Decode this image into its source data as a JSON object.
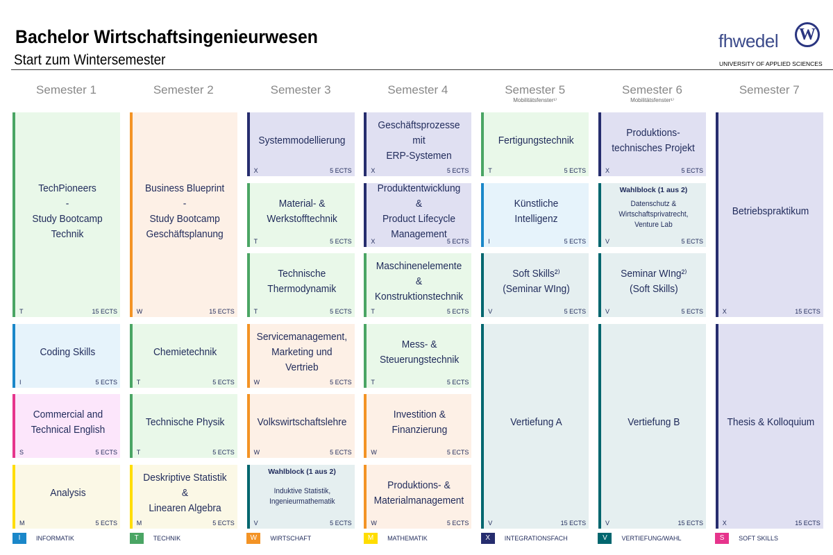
{
  "header": {
    "title": "Bachelor Wirtschaftsingenieurwesen",
    "subtitle": "Start zum Wintersemester"
  },
  "logo": {
    "text": "fhwedel",
    "emblem": "W",
    "tagline": "UNIVERSITY OF APPLIED SCIENCES"
  },
  "semesters": [
    {
      "label": "Semester 1"
    },
    {
      "label": "Semester 2"
    },
    {
      "label": "Semester 3"
    },
    {
      "label": "Semester 4"
    },
    {
      "label": "Semester 5",
      "note": "Mobilitätsfenster¹⁾"
    },
    {
      "label": "Semester 6",
      "note": "Mobilitätsfenster¹⁾"
    },
    {
      "label": "Semester 7"
    }
  ],
  "categories": {
    "I": {
      "label": "INFORMATIK",
      "color": "#1a87c9",
      "bg": "#e6f3fb"
    },
    "T": {
      "label": "TECHNIK",
      "color": "#4aa564",
      "bg": "#e9f8e9"
    },
    "W": {
      "label": "WIRTSCHAFT",
      "color": "#f39325",
      "bg": "#fdf0e6"
    },
    "M": {
      "label": "MATHEMATIK",
      "color": "#ffdd00",
      "bg": "#fbf8e6"
    },
    "X": {
      "label": "INTEGRATIONSFACH",
      "color": "#262d6e",
      "bg": "#e0e0f2"
    },
    "V": {
      "label": "VERTIEFUNG/WAHL",
      "color": "#00666e",
      "bg": "#e5eff0"
    },
    "S": {
      "label": "SOFT SKILLS",
      "color": "#e6348c",
      "bg": "#fce6fb"
    }
  },
  "legend_order": [
    "I",
    "T",
    "W",
    "M",
    "X",
    "V",
    "S"
  ],
  "modules": [
    {
      "sem": 1,
      "row": 1,
      "span": 3,
      "cat": "T",
      "title": "TechPioneers\n-\nStudy Bootcamp\nTechnik",
      "ects": "15 ECTS"
    },
    {
      "sem": 1,
      "row": 4,
      "span": 1,
      "cat": "I",
      "title": "Coding Skills",
      "ects": "5 ECTS"
    },
    {
      "sem": 1,
      "row": 5,
      "span": 1,
      "cat": "S",
      "title": "Commercial and\nTechnical English",
      "ects": "5 ECTS"
    },
    {
      "sem": 1,
      "row": 6,
      "span": 1,
      "cat": "M",
      "title": "Analysis",
      "ects": "5 ECTS"
    },
    {
      "sem": 2,
      "row": 1,
      "span": 3,
      "cat": "W",
      "title": "Business Blueprint\n-\nStudy Bootcamp\nGeschäftsplanung",
      "ects": "15 ECTS"
    },
    {
      "sem": 2,
      "row": 4,
      "span": 1,
      "cat": "T",
      "title": "Chemietechnik",
      "ects": "5 ECTS"
    },
    {
      "sem": 2,
      "row": 5,
      "span": 1,
      "cat": "T",
      "title": "Technische Physik",
      "ects": "5 ECTS"
    },
    {
      "sem": 2,
      "row": 6,
      "span": 1,
      "cat": "M",
      "title": "Deskriptive Statistik &\nLinearen Algebra",
      "ects": "5 ECTS"
    },
    {
      "sem": 3,
      "row": 1,
      "span": 1,
      "cat": "X",
      "title": "Systemmodellierung",
      "ects": "5 ECTS"
    },
    {
      "sem": 3,
      "row": 2,
      "span": 1,
      "cat": "T",
      "title": "Material- &\nWerkstofftechnik",
      "ects": "5 ECTS"
    },
    {
      "sem": 3,
      "row": 3,
      "span": 1,
      "cat": "T",
      "title": "Technische\nThermodynamik",
      "ects": "5 ECTS"
    },
    {
      "sem": 3,
      "row": 4,
      "span": 1,
      "cat": "W",
      "title": "Servicemanagement,\nMarketing und Vertrieb",
      "ects": "5 ECTS"
    },
    {
      "sem": 3,
      "row": 5,
      "span": 1,
      "cat": "W",
      "title": "Volkswirtschaftslehre",
      "ects": "5 ECTS"
    },
    {
      "sem": 3,
      "row": 6,
      "span": 1,
      "cat": "V",
      "header": "Wahlblock (1 aus 2)",
      "title": "Induktive Statistik,\nIngenieurmathematik",
      "ects": "5 ECTS"
    },
    {
      "sem": 4,
      "row": 1,
      "span": 1,
      "cat": "X",
      "title": "Geschäftsprozesse mit\nERP-Systemen",
      "ects": "5 ECTS"
    },
    {
      "sem": 4,
      "row": 2,
      "span": 1,
      "cat": "X",
      "title": "Produktentwicklung &\nProduct Lifecycle\nManagement",
      "ects": "5 ECTS"
    },
    {
      "sem": 4,
      "row": 3,
      "span": 1,
      "cat": "T",
      "title": "Maschinenelemente &\nKonstruktionstechnik",
      "ects": "5 ECTS"
    },
    {
      "sem": 4,
      "row": 4,
      "span": 1,
      "cat": "T",
      "title": "Mess- &\nSteuerungstechnik",
      "ects": "5 ECTS"
    },
    {
      "sem": 4,
      "row": 5,
      "span": 1,
      "cat": "W",
      "title": "Investition &\nFinanzierung",
      "ects": "5 ECTS"
    },
    {
      "sem": 4,
      "row": 6,
      "span": 1,
      "cat": "W",
      "title": "Produktions- &\nMaterialmanagement",
      "ects": "5 ECTS"
    },
    {
      "sem": 5,
      "row": 1,
      "span": 1,
      "cat": "T",
      "title": "Fertigungstechnik",
      "ects": "5 ECTS"
    },
    {
      "sem": 5,
      "row": 2,
      "span": 1,
      "cat": "I",
      "title": "Künstliche Intelligenz",
      "ects": "5 ECTS"
    },
    {
      "sem": 5,
      "row": 3,
      "span": 1,
      "cat": "V",
      "title": "Soft Skills²⁾\n(Seminar WIng)",
      "ects": "5 ECTS"
    },
    {
      "sem": 5,
      "row": 4,
      "span": 3,
      "cat": "V",
      "title": "Vertiefung A",
      "ects": "15 ECTS"
    },
    {
      "sem": 6,
      "row": 1,
      "span": 1,
      "cat": "X",
      "title": "Produktions-\ntechnisches Projekt",
      "ects": "5 ECTS"
    },
    {
      "sem": 6,
      "row": 2,
      "span": 1,
      "cat": "V",
      "header": "Wahlblock (1 aus 2)",
      "title": "Datenschutz &\nWirtschaftsprivatrecht,\nVenture Lab",
      "ects": "5 ECTS"
    },
    {
      "sem": 6,
      "row": 3,
      "span": 1,
      "cat": "V",
      "title": "Seminar WIng²⁾\n(Soft Skills)",
      "ects": "5 ECTS"
    },
    {
      "sem": 6,
      "row": 4,
      "span": 3,
      "cat": "V",
      "title": "Vertiefung B",
      "ects": "15 ECTS"
    },
    {
      "sem": 7,
      "row": 1,
      "span": 3,
      "cat": "X",
      "title": "Betriebspraktikum",
      "ects": "15 ECTS"
    },
    {
      "sem": 7,
      "row": 4,
      "span": 3,
      "cat": "X",
      "title": "Thesis & Kolloquium",
      "ects": "15 ECTS"
    }
  ]
}
